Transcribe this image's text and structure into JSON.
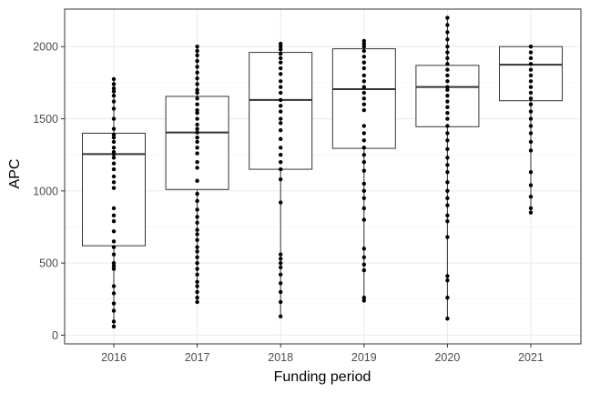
{
  "chart_data": {
    "type": "box",
    "xlabel": "Funding period",
    "ylabel": "APC",
    "ylim": [
      -60,
      2260
    ],
    "yticks": [
      0,
      500,
      1000,
      1500,
      2000
    ],
    "grid": true,
    "legend": "none",
    "categories": [
      "2016",
      "2017",
      "2018",
      "2019",
      "2020",
      "2021"
    ],
    "boxes": [
      {
        "category": "2016",
        "min": 60,
        "q1": 620,
        "median": 1255,
        "q3": 1400,
        "max": 1775
      },
      {
        "category": "2017",
        "min": 230,
        "q1": 1010,
        "median": 1405,
        "q3": 1655,
        "max": 2000
      },
      {
        "category": "2018",
        "min": 130,
        "q1": 1150,
        "median": 1630,
        "q3": 1960,
        "max": 2020
      },
      {
        "category": "2019",
        "min": 240,
        "q1": 1295,
        "median": 1705,
        "q3": 1985,
        "max": 2040
      },
      {
        "category": "2020",
        "min": 115,
        "q1": 1445,
        "median": 1720,
        "q3": 1870,
        "max": 2200
      },
      {
        "category": "2021",
        "min": 850,
        "q1": 1625,
        "median": 1875,
        "q3": 2000,
        "max": 2000
      }
    ],
    "points": [
      {
        "category": "2016",
        "values": [
          60,
          95,
          170,
          220,
          290,
          340,
          460,
          480,
          500,
          560,
          610,
          650,
          720,
          790,
          830,
          880,
          1020,
          1060,
          1100,
          1150,
          1190,
          1230,
          1255,
          1270,
          1300,
          1340,
          1370,
          1390,
          1430,
          1500,
          1570,
          1620,
          1660,
          1690,
          1710,
          1740,
          1775
        ]
      },
      {
        "category": "2017",
        "values": [
          230,
          260,
          300,
          340,
          370,
          420,
          460,
          500,
          540,
          580,
          610,
          660,
          700,
          730,
          780,
          820,
          870,
          930,
          980,
          1070,
          1160,
          1200,
          1260,
          1300,
          1340,
          1370,
          1405,
          1430,
          1460,
          1500,
          1540,
          1560,
          1600,
          1640,
          1680,
          1700,
          1740,
          1780,
          1820,
          1860,
          1900,
          1940,
          1970,
          2000
        ]
      },
      {
        "category": "2018",
        "values": [
          130,
          230,
          300,
          360,
          420,
          470,
          500,
          530,
          560,
          920,
          1080,
          1150,
          1200,
          1250,
          1300,
          1360,
          1420,
          1470,
          1500,
          1550,
          1590,
          1630,
          1680,
          1720,
          1760,
          1810,
          1850,
          1890,
          1920,
          1950,
          1980,
          2000,
          2020
        ]
      },
      {
        "category": "2019",
        "values": [
          240,
          260,
          450,
          490,
          540,
          600,
          800,
          880,
          950,
          1000,
          1050,
          1140,
          1200,
          1250,
          1300,
          1350,
          1400,
          1450,
          1560,
          1600,
          1640,
          1680,
          1720,
          1760,
          1800,
          1850,
          1890,
          1930,
          1970,
          2000,
          2020,
          2040
        ]
      },
      {
        "category": "2020",
        "values": [
          115,
          260,
          380,
          410,
          680,
          790,
          830,
          900,
          950,
          1000,
          1060,
          1130,
          1180,
          1230,
          1290,
          1350,
          1400,
          1450,
          1500,
          1540,
          1580,
          1620,
          1660,
          1700,
          1720,
          1760,
          1800,
          1840,
          1880,
          1920,
          1960,
          2000,
          2050,
          2100,
          2150,
          2200
        ]
      },
      {
        "category": "2021",
        "values": [
          850,
          880,
          960,
          1040,
          1130,
          1280,
          1340,
          1400,
          1450,
          1500,
          1550,
          1600,
          1640,
          1680,
          1720,
          1760,
          1800,
          1840,
          1880,
          1920,
          1960,
          2000
        ]
      }
    ]
  }
}
